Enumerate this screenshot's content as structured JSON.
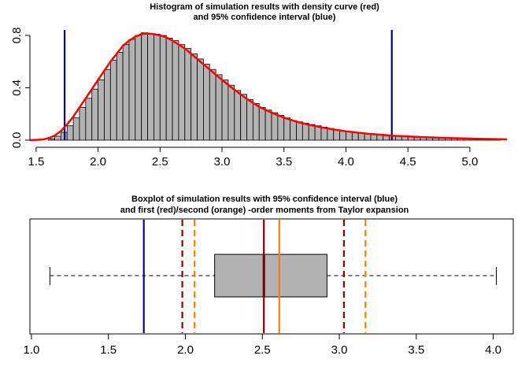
{
  "chart_data": [
    {
      "type": "histogram",
      "title_line1": "Histogram of simulation results with density curve (red)",
      "title_line2": "and 95% confidence interval (blue)",
      "xlim": [
        1.45,
        5.35
      ],
      "ylim": [
        0,
        0.86
      ],
      "x_ticks": [
        "1.5",
        "2.0",
        "2.5",
        "3.0",
        "3.5",
        "4.0",
        "4.5",
        "5.0"
      ],
      "y_ticks": [
        "0.0",
        "0.4",
        "0.8"
      ],
      "bin_width": 0.05,
      "bins": [
        [
          1.6,
          0.01
        ],
        [
          1.65,
          0.03
        ],
        [
          1.7,
          0.06
        ],
        [
          1.75,
          0.11
        ],
        [
          1.8,
          0.17
        ],
        [
          1.85,
          0.25
        ],
        [
          1.9,
          0.32
        ],
        [
          1.95,
          0.39
        ],
        [
          2.0,
          0.46
        ],
        [
          2.05,
          0.54
        ],
        [
          2.1,
          0.61
        ],
        [
          2.15,
          0.67
        ],
        [
          2.2,
          0.73
        ],
        [
          2.25,
          0.77
        ],
        [
          2.3,
          0.8
        ],
        [
          2.35,
          0.82
        ],
        [
          2.4,
          0.81
        ],
        [
          2.45,
          0.81
        ],
        [
          2.5,
          0.8
        ],
        [
          2.55,
          0.78
        ],
        [
          2.6,
          0.76
        ],
        [
          2.65,
          0.73
        ],
        [
          2.7,
          0.7
        ],
        [
          2.75,
          0.66
        ],
        [
          2.8,
          0.62
        ],
        [
          2.85,
          0.58
        ],
        [
          2.9,
          0.54
        ],
        [
          2.95,
          0.5
        ],
        [
          3.0,
          0.46
        ],
        [
          3.05,
          0.42
        ],
        [
          3.1,
          0.38
        ],
        [
          3.15,
          0.35
        ],
        [
          3.2,
          0.31
        ],
        [
          3.25,
          0.28
        ],
        [
          3.3,
          0.25
        ],
        [
          3.35,
          0.23
        ],
        [
          3.4,
          0.21
        ],
        [
          3.45,
          0.19
        ],
        [
          3.5,
          0.17
        ],
        [
          3.55,
          0.15
        ],
        [
          3.6,
          0.14
        ],
        [
          3.65,
          0.13
        ],
        [
          3.7,
          0.12
        ],
        [
          3.75,
          0.11
        ],
        [
          3.8,
          0.1
        ],
        [
          3.85,
          0.09
        ],
        [
          3.9,
          0.08
        ],
        [
          3.95,
          0.07
        ],
        [
          4.0,
          0.066
        ],
        [
          4.05,
          0.06
        ],
        [
          4.1,
          0.055
        ],
        [
          4.15,
          0.05
        ],
        [
          4.2,
          0.046
        ],
        [
          4.25,
          0.042
        ],
        [
          4.3,
          0.038
        ],
        [
          4.35,
          0.035
        ],
        [
          4.4,
          0.032
        ],
        [
          4.45,
          0.03
        ],
        [
          4.5,
          0.027
        ],
        [
          4.55,
          0.025
        ],
        [
          4.6,
          0.023
        ],
        [
          4.65,
          0.021
        ],
        [
          4.7,
          0.02
        ],
        [
          4.75,
          0.018
        ],
        [
          4.8,
          0.017
        ],
        [
          4.85,
          0.015
        ],
        [
          4.9,
          0.014
        ],
        [
          4.95,
          0.013
        ],
        [
          5.0,
          0.012
        ],
        [
          5.05,
          0.011
        ],
        [
          5.1,
          0.01
        ],
        [
          5.15,
          0.009
        ],
        [
          5.2,
          0.008
        ]
      ],
      "density_curve": [
        [
          1.45,
          0.0
        ],
        [
          1.5,
          0.002
        ],
        [
          1.55,
          0.005
        ],
        [
          1.6,
          0.015
        ],
        [
          1.65,
          0.035
        ],
        [
          1.7,
          0.07
        ],
        [
          1.75,
          0.12
        ],
        [
          1.8,
          0.18
        ],
        [
          1.85,
          0.25
        ],
        [
          1.9,
          0.32
        ],
        [
          1.95,
          0.39
        ],
        [
          2.0,
          0.46
        ],
        [
          2.05,
          0.53
        ],
        [
          2.1,
          0.6
        ],
        [
          2.15,
          0.66
        ],
        [
          2.2,
          0.72
        ],
        [
          2.25,
          0.76
        ],
        [
          2.3,
          0.79
        ],
        [
          2.35,
          0.81
        ],
        [
          2.4,
          0.815
        ],
        [
          2.45,
          0.81
        ],
        [
          2.5,
          0.8
        ],
        [
          2.55,
          0.785
        ],
        [
          2.6,
          0.76
        ],
        [
          2.65,
          0.73
        ],
        [
          2.7,
          0.7
        ],
        [
          2.75,
          0.66
        ],
        [
          2.8,
          0.62
        ],
        [
          2.85,
          0.58
        ],
        [
          2.9,
          0.54
        ],
        [
          2.95,
          0.5
        ],
        [
          3.0,
          0.46
        ],
        [
          3.1,
          0.385
        ],
        [
          3.2,
          0.315
        ],
        [
          3.3,
          0.255
        ],
        [
          3.4,
          0.21
        ],
        [
          3.5,
          0.172
        ],
        [
          3.6,
          0.142
        ],
        [
          3.7,
          0.118
        ],
        [
          3.8,
          0.098
        ],
        [
          3.9,
          0.082
        ],
        [
          4.0,
          0.068
        ],
        [
          4.2,
          0.047
        ],
        [
          4.4,
          0.033
        ],
        [
          4.6,
          0.024
        ],
        [
          4.8,
          0.017
        ],
        [
          5.0,
          0.012
        ],
        [
          5.2,
          0.008
        ],
        [
          5.3,
          0.006
        ]
      ],
      "ci_lines": [
        1.73,
        4.37
      ],
      "colors": {
        "bars": "#b3b3b3",
        "density": "#ff0000",
        "ci": "#00008b"
      }
    },
    {
      "type": "boxplot",
      "title_line1": "Boxplot of simulation results with 95% confidence interval (blue)",
      "title_line2": "and first (red)/second (orange) -order moments from Taylor expansion",
      "xlim": [
        0.99,
        4.13
      ],
      "x_ticks": [
        "1.0",
        "1.5",
        "2.0",
        "2.5",
        "3.0",
        "3.5",
        "4.0"
      ],
      "whisker_low": 1.12,
      "q1": 2.19,
      "median": 2.51,
      "q3": 2.92,
      "whisker_high": 4.02,
      "ci_lines": [
        1.73
      ],
      "first_order_moments": {
        "mean": 2.51,
        "bounds": [
          1.98,
          3.03
        ]
      },
      "second_order_moments": {
        "mean": 2.61,
        "bounds": [
          2.06,
          3.17
        ]
      },
      "colors": {
        "box": "#b3b3b3",
        "ci": "#00008b",
        "first_order": "#8b0000",
        "second_order": "#ff7f00"
      }
    }
  ]
}
